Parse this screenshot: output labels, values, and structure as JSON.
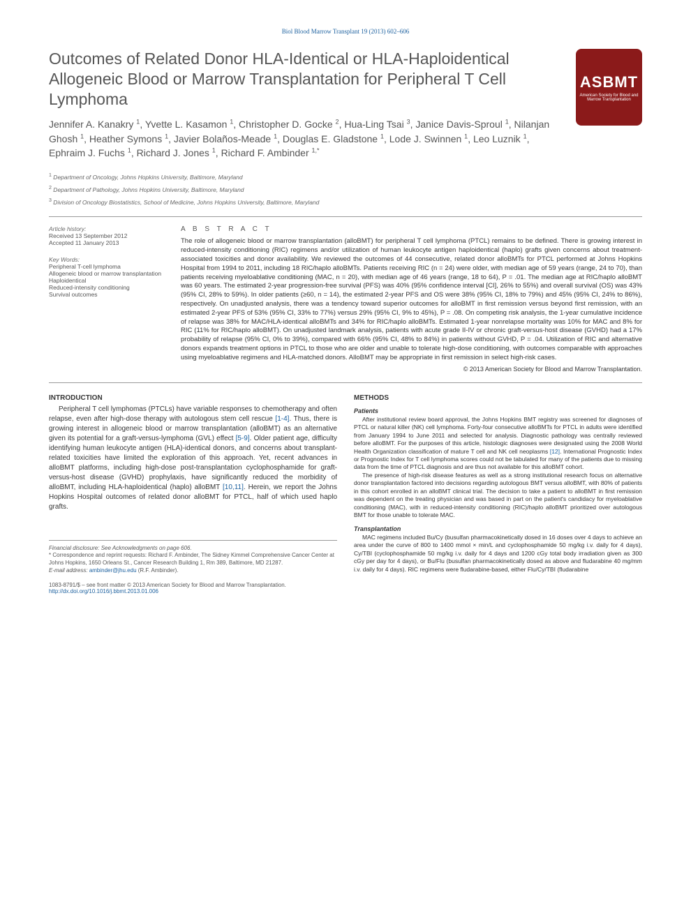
{
  "journal_header": "Biol Blood Marrow Transplant 19 (2013) 602–606",
  "title": "Outcomes of Related Donor HLA-Identical or HLA-Haploidentical Allogeneic Blood or Marrow Transplantation for Peripheral T Cell Lymphoma",
  "authors_html": "Jennifer A. Kanakry <sup>1</sup>, Yvette L. Kasamon <sup>1</sup>, Christopher D. Gocke <sup>2</sup>, Hua-Ling Tsai <sup>3</sup>, Janice Davis-Sproul <sup>1</sup>, Nilanjan Ghosh <sup>1</sup>, Heather Symons <sup>1</sup>, Javier Bolaños-Meade <sup>1</sup>, Douglas E. Gladstone <sup>1</sup>, Lode J. Swinnen <sup>1</sup>, Leo Luznik <sup>1</sup>, Ephraim J. Fuchs <sup>1</sup>, Richard J. Jones <sup>1</sup>, Richard F. Ambinder <sup>1,*</sup>",
  "affiliations": [
    "Department of Oncology, Johns Hopkins University, Baltimore, Maryland",
    "Department of Pathology, Johns Hopkins University, Baltimore, Maryland",
    "Division of Oncology Biostatistics, School of Medicine, Johns Hopkins University, Baltimore, Maryland"
  ],
  "logo": {
    "main": "ASBMT",
    "sub": "American Society for Blood and Marrow Transplantation"
  },
  "article_history": {
    "label": "Article history:",
    "received": "Received 13 September 2012",
    "accepted": "Accepted 11 January 2013"
  },
  "keywords": {
    "label": "Key Words:",
    "items": [
      "Peripheral T-cell lymphoma",
      "Allogeneic blood or marrow transplantation",
      "Haploidentical",
      "Reduced-intensity conditioning",
      "Survival outcomes"
    ]
  },
  "abstract_heading": "A B S T R A C T",
  "abstract": "The role of allogeneic blood or marrow transplantation (alloBMT) for peripheral T cell lymphoma (PTCL) remains to be defined. There is growing interest in reduced-intensity conditioning (RIC) regimens and/or utilization of human leukocyte antigen haploidentical (haplo) grafts given concerns about treatment-associated toxicities and donor availability. We reviewed the outcomes of 44 consecutive, related donor alloBMTs for PTCL performed at Johns Hopkins Hospital from 1994 to 2011, including 18 RIC/haplo alloBMTs. Patients receiving RIC (n = 24) were older, with median age of 59 years (range, 24 to 70), than patients receiving myeloablative conditioning (MAC, n = 20), with median age of 46 years (range, 18 to 64), P = .01. The median age at RIC/haplo alloBMT was 60 years. The estimated 2-year progression-free survival (PFS) was 40% (95% confidence interval [CI], 26% to 55%) and overall survival (OS) was 43% (95% CI, 28% to 59%). In older patients (≥60, n = 14), the estimated 2-year PFS and OS were 38% (95% CI, 18% to 79%) and 45% (95% CI, 24% to 86%), respectively. On unadjusted analysis, there was a tendency toward superior outcomes for alloBMT in first remission versus beyond first remission, with an estimated 2-year PFS of 53% (95% CI, 33% to 77%) versus 29% (95% CI, 9% to 45%), P = .08. On competing risk analysis, the 1-year cumulative incidence of relapse was 38% for MAC/HLA-identical alloBMTs and 34% for RIC/haplo alloBMTs. Estimated 1-year nonrelapse mortality was 10% for MAC and 8% for RIC (11% for RIC/haplo alloBMT). On unadjusted landmark analysis, patients with acute grade II-IV or chronic graft-versus-host disease (GVHD) had a 17% probability of relapse (95% CI, 0% to 39%), compared with 66% (95% CI, 48% to 84%) in patients without GVHD, P = .04. Utilization of RIC and alternative donors expands treatment options in PTCL to those who are older and unable to tolerate high-dose conditioning, with outcomes comparable with approaches using myeloablative regimens and HLA-matched donors. AlloBMT may be appropriate in first remission in select high-risk cases.",
  "copyright": "© 2013 American Society for Blood and Marrow Transplantation.",
  "introduction_heading": "INTRODUCTION",
  "introduction": "Peripheral T cell lymphomas (PTCLs) have variable responses to chemotherapy and often relapse, even after high-dose therapy with autologous stem cell rescue [1-4]. Thus, there is growing interest in allogeneic blood or marrow transplantation (alloBMT) as an alternative given its potential for a graft-versus-lymphoma (GVL) effect [5-9]. Older patient age, difficulty identifying human leukocyte antigen (HLA)-identical donors, and concerns about transplant-related toxicities have limited the exploration of this approach. Yet, recent advances in alloBMT platforms, including high-dose post-transplantation cyclophosphamide for graft-versus-host disease (GVHD) prophylaxis, have significantly reduced the morbidity of alloBMT, including HLA-haploidentical (haplo) alloBMT [10,11]. Herein, we report the Johns Hopkins Hospital outcomes of related donor alloBMT for PTCL, half of which used haplo grafts.",
  "methods_heading": "METHODS",
  "patients_heading": "Patients",
  "patients_text": "After institutional review board approval, the Johns Hopkins BMT registry was screened for diagnoses of PTCL or natural killer (NK) cell lymphoma. Forty-four consecutive alloBMTs for PTCL in adults were identified from January 1994 to June 2011 and selected for analysis. Diagnostic pathology was centrally reviewed before alloBMT. For the purposes of this article, histologic diagnoses were designated using the 2008 World Health Organization classification of mature T cell and NK cell neoplasms [12]. International Prognostic Index or Prognostic Index for T cell lymphoma scores could not be tabulated for many of the patients due to missing data from the time of PTCL diagnosis and are thus not available for this alloBMT cohort.",
  "patients_text2": "The presence of high-risk disease features as well as a strong institutional research focus on alternative donor transplantation factored into decisions regarding autologous BMT versus alloBMT, with 80% of patients in this cohort enrolled in an alloBMT clinical trial. The decision to take a patient to alloBMT in first remission was dependent on the treating physician and was based in part on the patient's candidacy for myeloablative conditioning (MAC), with in reduced-intensity conditioning (RIC)/haplo alloBMT prioritized over autologous BMT for those unable to tolerate MAC.",
  "transplant_heading": "Transplantation",
  "transplant_text": "MAC regimens included Bu/Cy (busulfan pharmacokinetically dosed in 16 doses over 4 days to achieve an area under the curve of 800 to 1400 mmol × min/L and cyclophosphamide 50 mg/kg i.v. daily for 4 days), Cy/TBI (cyclophosphamide 50 mg/kg i.v. daily for 4 days and 1200 cGy total body irradiation given as 300 cGy per day for 4 days), or Bu/Flu (busulfan pharmacokinetically dosed as above and fludarabine 40 mg/mm i.v. daily for 4 days). RIC regimens were fludarabine-based, either Flu/Cy/TBI (fludarabine",
  "footer": {
    "disclosure": "Financial disclosure: See Acknowledgments on page 606.",
    "correspondence": "* Correspondence and reprint requests: Richard F. Ambinder, The Sidney Kimmel Comprehensive Cancer Center at Johns Hopkins, 1650 Orleans St., Cancer Research Building 1, Rm 389, Baltimore, MD 21287.",
    "email_label": "E-mail address:",
    "email": "ambinder@jhu.edu",
    "email_suffix": "(R.F. Ambinder).",
    "issn": "1083-8791/$ – see front matter © 2013 American Society for Blood and Marrow Transplantation.",
    "doi": "http://dx.doi.org/10.1016/j.bbmt.2013.01.006"
  },
  "colors": {
    "link": "#1a5f9e",
    "logo_bg": "#8b1a1a",
    "text": "#333333",
    "text_muted": "#555555"
  }
}
